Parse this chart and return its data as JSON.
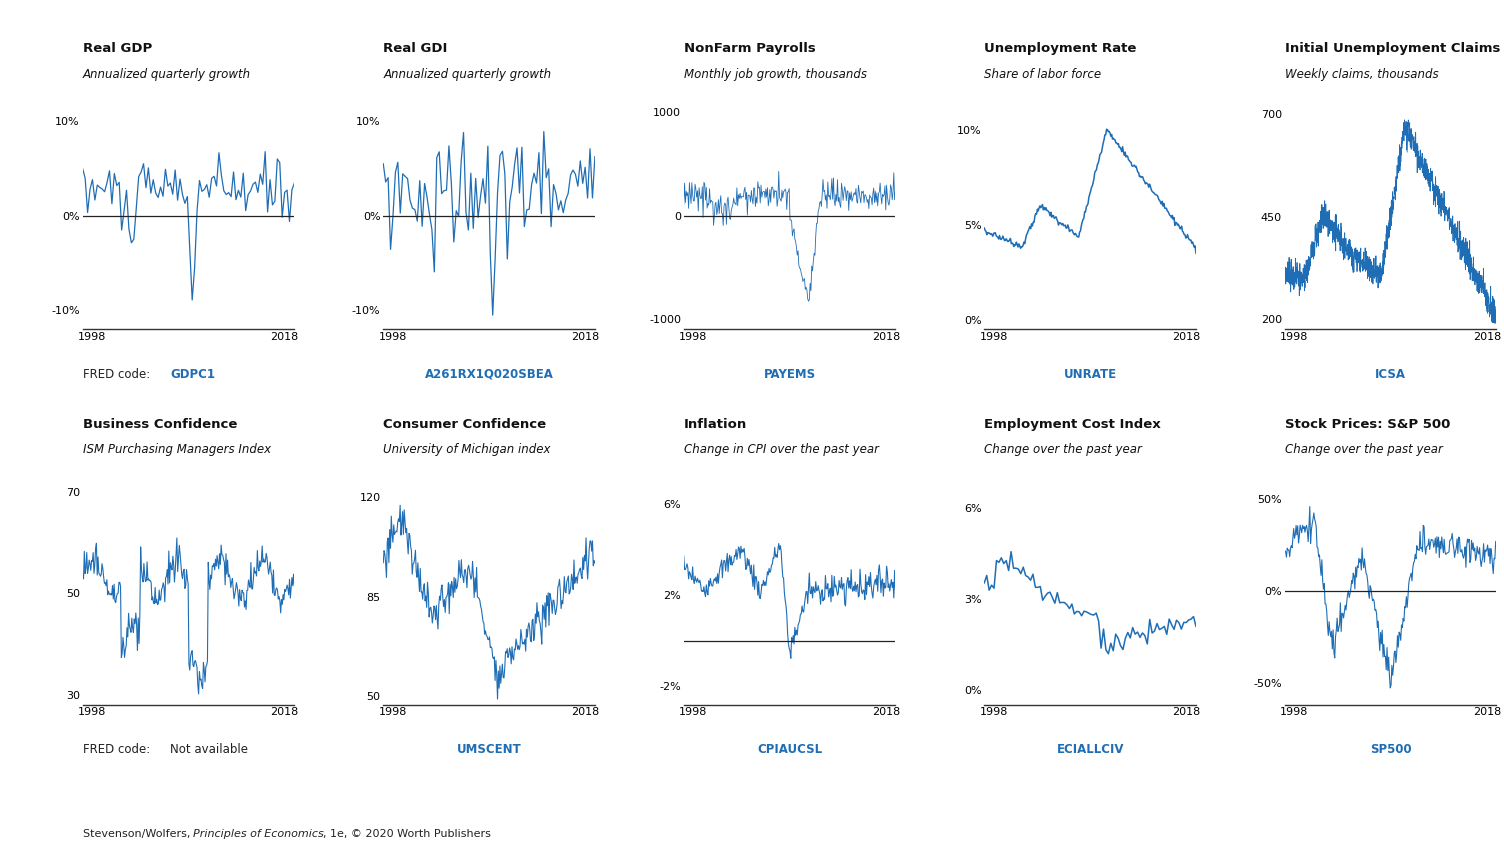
{
  "panels": [
    {
      "title": "Real GDP",
      "subtitle": "Annualized quarterly growth",
      "fred_code": "GDPC1",
      "fred_code_color": "#1f6eb5",
      "ylim": [
        -12,
        12
      ],
      "yticks": [
        -10,
        0,
        10
      ],
      "yticklabels": [
        "-10%",
        "0%",
        "10%"
      ],
      "zero_line": true,
      "xlim": [
        1997,
        2019
      ],
      "xticks": [
        1998,
        2018
      ]
    },
    {
      "title": "Real GDI",
      "subtitle": "Annualized quarterly growth",
      "fred_code": "A261RX1Q020SBEA",
      "fred_code_color": "#1f6eb5",
      "ylim": [
        -12,
        12
      ],
      "yticks": [
        -10,
        0,
        10
      ],
      "yticklabels": [
        "-10%",
        "0%",
        "10%"
      ],
      "zero_line": true,
      "xlim": [
        1997,
        2019
      ],
      "xticks": [
        1998,
        2018
      ]
    },
    {
      "title": "NonFarm Payrolls",
      "subtitle": "Monthly job growth, thousands",
      "fred_code": "PAYEMS",
      "fred_code_color": "#1f6eb5",
      "ylim": [
        -1100,
        1100
      ],
      "yticks": [
        -1000,
        0,
        1000
      ],
      "yticklabels": [
        "-1000",
        "0",
        "1000"
      ],
      "zero_line": true,
      "xlim": [
        1997,
        2019
      ],
      "xticks": [
        1998,
        2018
      ]
    },
    {
      "title": "Unemployment Rate",
      "subtitle": "Share of labor force",
      "fred_code": "UNRATE",
      "fred_code_color": "#1f6eb5",
      "ylim": [
        -0.5,
        11.5
      ],
      "yticks": [
        0,
        5,
        10
      ],
      "yticklabels": [
        "0%",
        "5%",
        "10%"
      ],
      "zero_line": false,
      "xlim": [
        1997,
        2019
      ],
      "xticks": [
        1998,
        2018
      ]
    },
    {
      "title": "Initial Unemployment Claims",
      "subtitle": "Weekly claims, thousands",
      "fred_code": "ICSA",
      "fred_code_color": "#1f6eb5",
      "ylim": [
        175,
        730
      ],
      "yticks": [
        200,
        450,
        700
      ],
      "yticklabels": [
        "200",
        "450",
        "700"
      ],
      "zero_line": false,
      "xlim": [
        1997,
        2019
      ],
      "xticks": [
        1998,
        2018
      ]
    },
    {
      "title": "Business Confidence",
      "subtitle": "ISM Purchasing Managers Index",
      "fred_code": "Not available",
      "fred_code_color": "#333333",
      "ylim": [
        28,
        73
      ],
      "yticks": [
        30,
        50,
        70
      ],
      "yticklabels": [
        "30",
        "50",
        "70"
      ],
      "zero_line": false,
      "xlim": [
        1997,
        2019
      ],
      "xticks": [
        1998,
        2018
      ]
    },
    {
      "title": "Consumer Confidence",
      "subtitle": "University of Michigan index",
      "fred_code": "UMSCENT",
      "fred_code_color": "#1f6eb5",
      "ylim": [
        47,
        127
      ],
      "yticks": [
        50,
        85,
        120
      ],
      "yticklabels": [
        "50",
        "85",
        "120"
      ],
      "zero_line": false,
      "xlim": [
        1997,
        2019
      ],
      "xticks": [
        1998,
        2018
      ]
    },
    {
      "title": "Inflation",
      "subtitle": "Change in CPI over the past year",
      "fred_code": "CPIAUCSL",
      "fred_code_color": "#1f6eb5",
      "ylim": [
        -2.8,
        7.2
      ],
      "yticks": [
        -2,
        2,
        6
      ],
      "yticklabels": [
        "-2%",
        "2%",
        "6%"
      ],
      "zero_line": true,
      "xlim": [
        1997,
        2019
      ],
      "xticks": [
        1998,
        2018
      ]
    },
    {
      "title": "Employment Cost Index",
      "subtitle": "Change over the past year",
      "fred_code": "ECIALLCIV",
      "fred_code_color": "#1f6eb5",
      "ylim": [
        -0.5,
        7
      ],
      "yticks": [
        0,
        3,
        6
      ],
      "yticklabels": [
        "0%",
        "3%",
        "6%"
      ],
      "zero_line": false,
      "xlim": [
        1997,
        2019
      ],
      "xticks": [
        1998,
        2018
      ]
    },
    {
      "title": "Stock Prices: S&P 500",
      "subtitle": "Change over the past year",
      "fred_code": "SP500",
      "fred_code_color": "#1f6eb5",
      "ylim": [
        -62,
        62
      ],
      "yticks": [
        -50,
        0,
        50
      ],
      "yticklabels": [
        "-50%",
        "0%",
        "50%"
      ],
      "zero_line": true,
      "xlim": [
        1997,
        2019
      ],
      "xticks": [
        1998,
        2018
      ]
    }
  ],
  "line_color": "#1f6eb5",
  "zero_line_color": "#222222",
  "axis_color": "#333333",
  "background_color": "#ffffff",
  "fred_label_color": "#1f6eb5",
  "fred_text_color": "#222222",
  "fred_row1_prefix": "FRED code: ",
  "fred_row2_prefix": "FRED code: "
}
